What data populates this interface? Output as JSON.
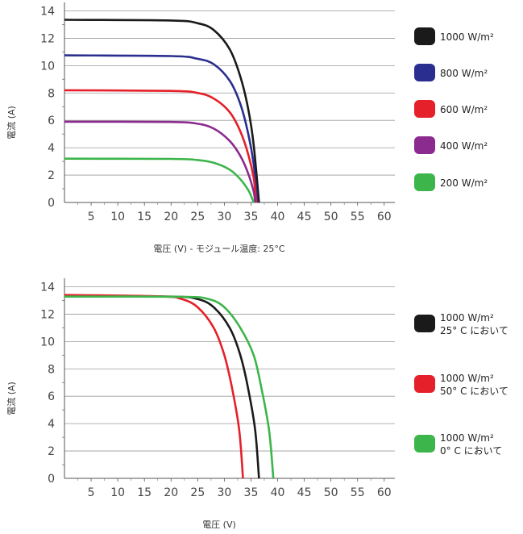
{
  "chart_data": [
    {
      "type": "line",
      "title": "",
      "xlabel": "電圧 (V) - モジュール温度: 25°C",
      "ylabel": "電流 (A)",
      "xlim": [
        0,
        62
      ],
      "ylim": [
        0,
        14.5
      ],
      "x_ticks": [
        5,
        10,
        15,
        20,
        25,
        30,
        35,
        40,
        45,
        50,
        55,
        60
      ],
      "y_ticks": [
        0,
        2,
        4,
        6,
        8,
        10,
        12,
        14
      ],
      "grid": "horizontal",
      "legend_position": "right",
      "series": [
        {
          "name": "1000 W/m²",
          "color": "#1a1a1a",
          "isc": 13.35,
          "voc": 36.5,
          "knee": 0.72,
          "points": [
            [
              0,
              13.35
            ],
            [
              20,
              13.3
            ],
            [
              25,
              13.1
            ],
            [
              28,
              12.6
            ],
            [
              31,
              11.2
            ],
            [
              33,
              9.2
            ],
            [
              34.5,
              6.8
            ],
            [
              35.5,
              4.2
            ],
            [
              36.5,
              0
            ]
          ]
        },
        {
          "name": "800 W/m²",
          "color": "#2a2f8f",
          "isc": 10.75,
          "voc": 36.2,
          "knee": 0.72,
          "points": [
            [
              0,
              10.75
            ],
            [
              20,
              10.7
            ],
            [
              25,
              10.5
            ],
            [
              28,
              10.1
            ],
            [
              31,
              8.9
            ],
            [
              33,
              7.2
            ],
            [
              34.5,
              5.0
            ],
            [
              35.5,
              2.8
            ],
            [
              36.2,
              0
            ]
          ]
        },
        {
          "name": "600 W/m²",
          "color": "#e5202a",
          "isc": 8.2,
          "voc": 36.0,
          "knee": 0.72,
          "points": [
            [
              0,
              8.2
            ],
            [
              20,
              8.15
            ],
            [
              25,
              8.0
            ],
            [
              28,
              7.6
            ],
            [
              31,
              6.6
            ],
            [
              33,
              5.2
            ],
            [
              34.5,
              3.5
            ],
            [
              35.5,
              1.8
            ],
            [
              36.0,
              0
            ]
          ]
        },
        {
          "name": "400 W/m²",
          "color": "#8b2a8f",
          "isc": 5.9,
          "voc": 35.8,
          "knee": 0.72,
          "points": [
            [
              0,
              5.9
            ],
            [
              20,
              5.88
            ],
            [
              25,
              5.75
            ],
            [
              28,
              5.4
            ],
            [
              31,
              4.5
            ],
            [
              33,
              3.4
            ],
            [
              34.5,
              2.1
            ],
            [
              35.5,
              0.8
            ],
            [
              35.8,
              0
            ]
          ]
        },
        {
          "name": "200 W/m²",
          "color": "#3cb54a",
          "isc": 3.2,
          "voc": 35.5,
          "knee": 0.72,
          "points": [
            [
              0,
              3.2
            ],
            [
              20,
              3.18
            ],
            [
              25,
              3.1
            ],
            [
              28,
              2.9
            ],
            [
              31,
              2.4
            ],
            [
              33,
              1.7
            ],
            [
              34.5,
              0.9
            ],
            [
              35.2,
              0.3
            ],
            [
              35.5,
              0
            ]
          ]
        }
      ]
    },
    {
      "type": "line",
      "title": "",
      "xlabel": "電圧 (V)",
      "ylabel": "電流 (A)",
      "xlim": [
        0,
        62
      ],
      "ylim": [
        0,
        14.5
      ],
      "x_ticks": [
        5,
        10,
        15,
        20,
        25,
        30,
        35,
        40,
        45,
        50,
        55,
        60
      ],
      "y_ticks": [
        0,
        2,
        4,
        6,
        8,
        10,
        12,
        14
      ],
      "grid": "horizontal",
      "legend_position": "right",
      "series": [
        {
          "name": "1000 W/m²",
          "name_line2": "25° C において",
          "color": "#1a1a1a",
          "isc": 13.35,
          "voc": 36.5,
          "points": [
            [
              0,
              13.3
            ],
            [
              20,
              13.28
            ],
            [
              25,
              13.1
            ],
            [
              28,
              12.5
            ],
            [
              31,
              11.0
            ],
            [
              33,
              9.0
            ],
            [
              34.5,
              6.5
            ],
            [
              35.8,
              3.5
            ],
            [
              36.5,
              0
            ]
          ]
        },
        {
          "name": "1000 W/m²",
          "name_line2": "50° C において",
          "color": "#e5202a",
          "isc": 13.4,
          "voc": 33.5,
          "points": [
            [
              0,
              13.4
            ],
            [
              18,
              13.3
            ],
            [
              22,
              13.1
            ],
            [
              25,
              12.5
            ],
            [
              28,
              11.0
            ],
            [
              30,
              9.0
            ],
            [
              31.5,
              6.5
            ],
            [
              32.8,
              3.5
            ],
            [
              33.5,
              0
            ]
          ]
        },
        {
          "name": "1000 W/m²",
          "name_line2": "0° C において",
          "color": "#3cb54a",
          "isc": 13.3,
          "voc": 39.2,
          "points": [
            [
              0,
              13.28
            ],
            [
              22,
              13.27
            ],
            [
              27,
              13.1
            ],
            [
              30,
              12.5
            ],
            [
              33,
              11.0
            ],
            [
              35.5,
              9.0
            ],
            [
              37,
              6.5
            ],
            [
              38.4,
              3.5
            ],
            [
              39.2,
              0
            ]
          ]
        }
      ]
    }
  ]
}
